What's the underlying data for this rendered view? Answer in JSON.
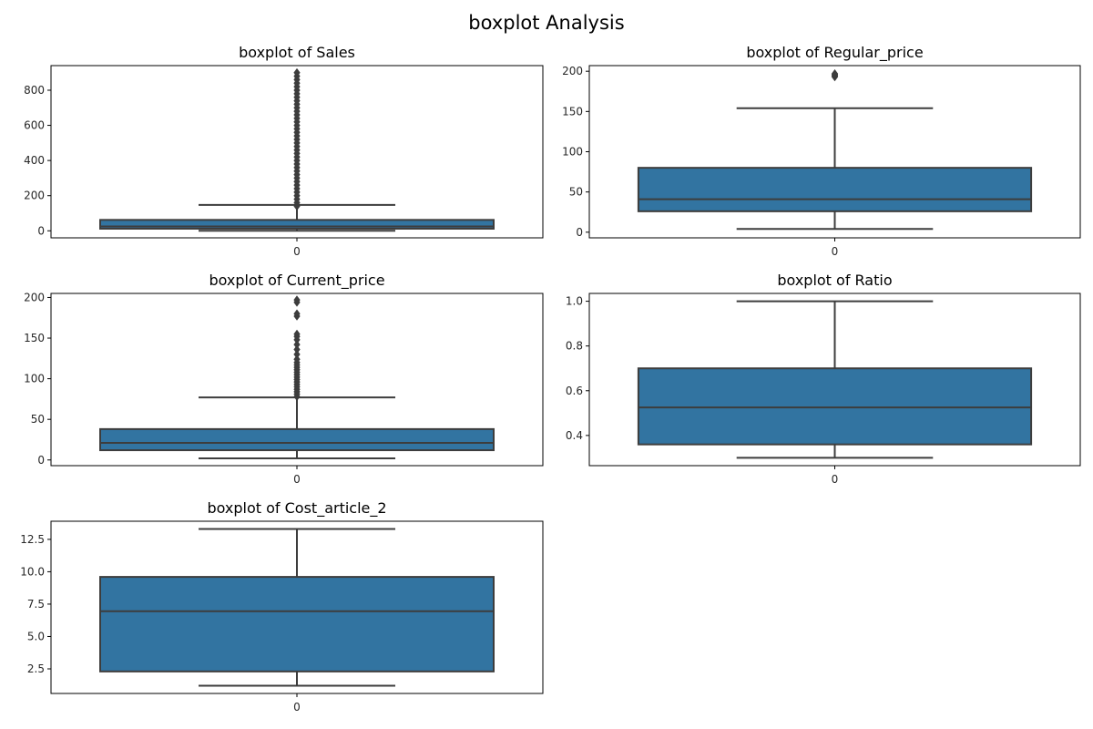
{
  "figure": {
    "title": "boxplot Analysis"
  },
  "colors": {
    "box_fill": "#3274a1",
    "box_edge": "#3d3d3d",
    "axes_edge": "#000000",
    "outlier": "#3d3d3d"
  },
  "chart_data": [
    {
      "type": "box",
      "title": "boxplot of Sales",
      "categories": [
        "0"
      ],
      "stats": {
        "whisker_low": 0,
        "q1": 12,
        "median": 25,
        "q3": 62,
        "whisker_high": 147
      },
      "outliers": [
        140,
        160,
        180,
        200,
        220,
        240,
        260,
        280,
        300,
        320,
        340,
        360,
        380,
        400,
        420,
        440,
        460,
        480,
        500,
        520,
        540,
        560,
        580,
        600,
        620,
        640,
        660,
        680,
        700,
        720,
        740,
        760,
        780,
        800,
        820,
        840,
        860,
        880,
        900
      ],
      "ylim": [
        -40,
        940
      ],
      "yticks": [
        0,
        200,
        400,
        600,
        800
      ]
    },
    {
      "type": "box",
      "title": "boxplot of Regular_price",
      "categories": [
        "0"
      ],
      "stats": {
        "whisker_low": 4,
        "q1": 26,
        "median": 41,
        "q3": 80,
        "whisker_high": 154
      },
      "outliers": [
        193,
        194,
        195,
        196,
        197
      ],
      "ylim": [
        -7,
        207
      ],
      "yticks": [
        0,
        50,
        100,
        150,
        200
      ]
    },
    {
      "type": "box",
      "title": "boxplot of Current_price",
      "categories": [
        "0"
      ],
      "stats": {
        "whisker_low": 2,
        "q1": 12,
        "median": 21,
        "q3": 38,
        "whisker_high": 77
      },
      "outliers": [
        78,
        81,
        84,
        87,
        90,
        93,
        96,
        99,
        102,
        105,
        108,
        111,
        114,
        117,
        120,
        124,
        130,
        136,
        142,
        148,
        152,
        155,
        177,
        180,
        194,
        197
      ],
      "ylim": [
        -7,
        205
      ],
      "yticks": [
        0,
        50,
        100,
        150,
        200
      ]
    },
    {
      "type": "box",
      "title": "boxplot of Ratio",
      "categories": [
        "0"
      ],
      "stats": {
        "whisker_low": 0.3,
        "q1": 0.36,
        "median": 0.525,
        "q3": 0.7,
        "whisker_high": 1.0
      },
      "outliers": [],
      "ylim": [
        0.265,
        1.035
      ],
      "yticks": [
        0.4,
        0.6,
        0.8,
        1.0
      ],
      "ytick_labels": [
        "0.4",
        "0.6",
        "0.8",
        "1.0"
      ]
    },
    {
      "type": "box",
      "title": "boxplot of Cost_article_2",
      "categories": [
        "0"
      ],
      "stats": {
        "whisker_low": 1.2,
        "q1": 2.3,
        "median": 6.95,
        "q3": 9.6,
        "whisker_high": 13.3
      },
      "outliers": [],
      "ylim": [
        0.6,
        13.9
      ],
      "yticks": [
        2.5,
        5.0,
        7.5,
        10.0,
        12.5
      ],
      "ytick_labels": [
        "2.5",
        "5.0",
        "7.5",
        "10.0",
        "12.5"
      ]
    }
  ]
}
